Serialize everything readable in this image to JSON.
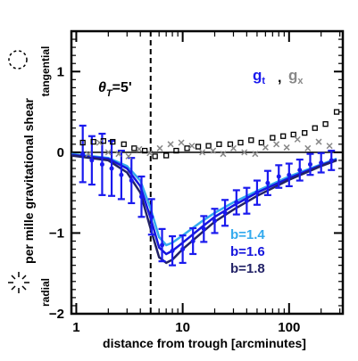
{
  "colors": {
    "axes": "#000000",
    "b14": "#33aaee",
    "b16": "#1515dd",
    "b18": "#222266",
    "gt": "#1a1aee",
    "gx_black": "#000000",
    "gx_gray": "#888888"
  },
  "side_labels": {
    "top": "tangential",
    "bottom": "radial"
  },
  "theta_label": {
    "symbol": "θ",
    "sub": "T",
    "value": "=5'"
  },
  "legend_symbols": {
    "gt": {
      "symbol": "g",
      "sub": "t"
    },
    "separator": ",",
    "gx": {
      "symbol": "g",
      "sub": "x"
    }
  },
  "chart_data": {
    "type": "line",
    "title": "",
    "xlabel": "distance from trough [arcminutes]",
    "ylabel": "per mille gravitational shear",
    "xscale": "log",
    "xlim": [
      0.9,
      320
    ],
    "ylim": [
      -2,
      1.5
    ],
    "x_ticks": [
      {
        "value": 1,
        "label": "1"
      },
      {
        "value": 10,
        "label": "10"
      },
      {
        "value": 100,
        "label": "100"
      }
    ],
    "y_ticks": [
      {
        "value": 1,
        "label": "1"
      },
      {
        "value": 0,
        "label": "0"
      },
      {
        "value": -1,
        "label": "−1"
      },
      {
        "value": -2,
        "label": "−2"
      }
    ],
    "vline_x": 5,
    "series": [
      {
        "name": "b=1.4",
        "kind": "line",
        "color": "#33aaee",
        "x": [
          0.9,
          2,
          3,
          4,
          5,
          6,
          7,
          8,
          10,
          15,
          20,
          30,
          50,
          100,
          200,
          280
        ],
        "y": [
          -0.02,
          -0.07,
          -0.17,
          -0.35,
          -0.7,
          -1.05,
          -1.15,
          -1.12,
          -1.03,
          -0.86,
          -0.75,
          -0.62,
          -0.48,
          -0.3,
          -0.15,
          -0.08
        ]
      },
      {
        "name": "b=1.6",
        "kind": "line",
        "color": "#1515dd",
        "x": [
          0.9,
          2,
          3,
          4,
          5,
          6,
          7,
          8,
          10,
          15,
          20,
          30,
          50,
          100,
          200,
          280
        ],
        "y": [
          -0.03,
          -0.08,
          -0.2,
          -0.42,
          -0.82,
          -1.18,
          -1.26,
          -1.22,
          -1.12,
          -0.93,
          -0.8,
          -0.66,
          -0.5,
          -0.32,
          -0.16,
          -0.09
        ]
      },
      {
        "name": "b=1.8",
        "kind": "line",
        "color": "#222266",
        "x": [
          0.9,
          2,
          3,
          4,
          5,
          6,
          7,
          8,
          10,
          15,
          20,
          30,
          50,
          100,
          200,
          280
        ],
        "y": [
          -0.04,
          -0.1,
          -0.25,
          -0.5,
          -0.95,
          -1.3,
          -1.37,
          -1.33,
          -1.2,
          -1.0,
          -0.86,
          -0.71,
          -0.54,
          -0.34,
          -0.17,
          -0.1
        ]
      },
      {
        "name": "g_t",
        "kind": "errorbar",
        "color": "#1a1aee",
        "x": [
          1.15,
          1.4,
          1.75,
          2.15,
          2.65,
          3.3,
          4.1,
          5.1,
          6.4,
          8.0,
          10.0,
          12.5,
          15.8,
          20,
          25,
          32,
          40,
          50,
          63,
          80,
          100,
          126,
          158,
          200,
          250
        ],
        "y": [
          -0.02,
          -0.1,
          -0.15,
          -0.2,
          -0.28,
          -0.35,
          -0.55,
          -0.8,
          -1.15,
          -1.22,
          -1.2,
          -1.1,
          -0.95,
          -0.85,
          -0.75,
          -0.62,
          -0.6,
          -0.5,
          -0.38,
          -0.3,
          -0.28,
          -0.22,
          -0.15,
          -0.13,
          -0.1
        ],
        "err": [
          0.35,
          0.3,
          0.38,
          0.34,
          0.3,
          0.28,
          0.25,
          0.22,
          0.2,
          0.18,
          0.17,
          0.16,
          0.16,
          0.15,
          0.16,
          0.15,
          0.16,
          0.15,
          0.15,
          0.14,
          0.14,
          0.13,
          0.13,
          0.12,
          0.12
        ]
      },
      {
        "name": "g_x",
        "kind": "scatter",
        "color": "#000000",
        "marker": "square",
        "x": [
          1.15,
          1.45,
          1.8,
          2.2,
          2.8,
          3.5,
          4.4,
          5.5,
          7,
          8.7,
          11,
          14,
          17.5,
          22,
          28,
          35,
          44,
          55,
          70,
          88,
          110,
          140,
          175,
          220,
          280
        ],
        "y": [
          0.12,
          0.13,
          0.14,
          0.13,
          0.1,
          0.05,
          0.02,
          -0.05,
          -0.04,
          0.02,
          0.05,
          0.07,
          0.08,
          0.1,
          0.1,
          0.12,
          0.15,
          0.12,
          0.18,
          0.2,
          0.22,
          0.24,
          0.3,
          0.35,
          0.5
        ]
      },
      {
        "name": "g_x (gray)",
        "kind": "scatter",
        "color": "#888888",
        "marker": "x",
        "x": [
          1.3,
          1.65,
          2.0,
          2.5,
          3.1,
          3.9,
          4.9,
          6.1,
          7.7,
          9.7,
          12.2,
          15.3,
          19.3,
          24,
          30,
          38,
          48,
          60,
          76,
          95,
          120,
          150,
          190,
          240
        ],
        "y": [
          -0.02,
          0.12,
          0.0,
          -0.02,
          -0.05,
          0.04,
          -0.01,
          0.05,
          0.1,
          0.12,
          0.08,
          0.0,
          0.02,
          -0.02,
          0.05,
          0.0,
          -0.02,
          0.06,
          0.1,
          0.06,
          0.16,
          0.05,
          0.13,
          0.08
        ]
      }
    ],
    "legend": [
      {
        "label": "b=1.4",
        "color": "#33aaee"
      },
      {
        "label": "b=1.6",
        "color": "#1515dd"
      },
      {
        "label": "b=1.8",
        "color": "#222266"
      }
    ]
  }
}
